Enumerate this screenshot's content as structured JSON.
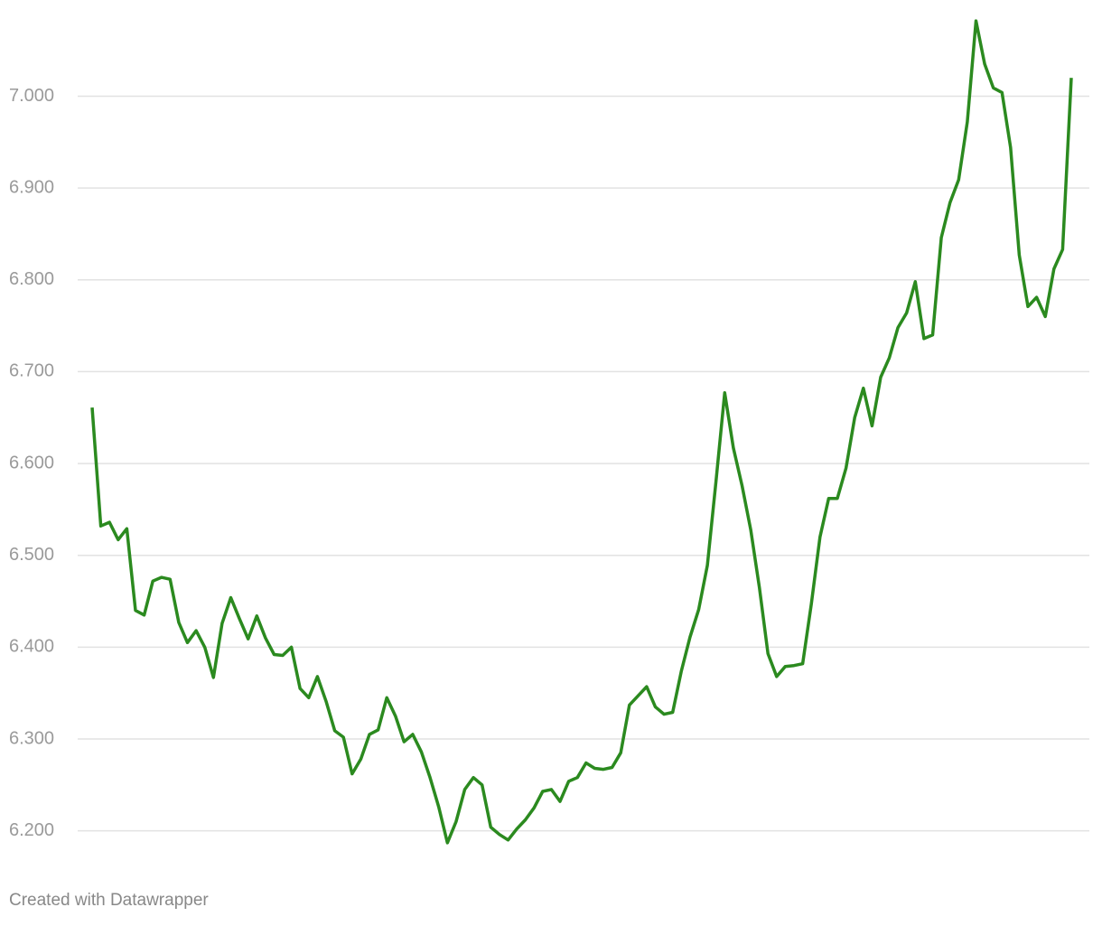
{
  "chart_data": {
    "type": "line",
    "values": [
      6.661,
      6.532,
      6.536,
      6.517,
      6.529,
      6.44,
      6.435,
      6.472,
      6.476,
      6.474,
      6.427,
      6.405,
      6.418,
      6.4,
      6.367,
      6.426,
      6.454,
      6.431,
      6.409,
      6.434,
      6.41,
      6.392,
      6.391,
      6.4,
      6.355,
      6.345,
      6.368,
      6.341,
      6.309,
      6.302,
      6.262,
      6.278,
      6.305,
      6.31,
      6.345,
      6.325,
      6.297,
      6.305,
      6.286,
      6.258,
      6.226,
      6.187,
      6.21,
      6.245,
      6.258,
      6.25,
      6.204,
      6.196,
      6.19,
      6.202,
      6.212,
      6.225,
      6.243,
      6.245,
      6.232,
      6.254,
      6.258,
      6.274,
      6.268,
      6.267,
      6.269,
      6.285,
      6.337,
      6.347,
      6.357,
      6.335,
      6.327,
      6.329,
      6.374,
      6.411,
      6.441,
      6.489,
      6.581,
      6.677,
      6.617,
      6.576,
      6.528,
      6.465,
      6.393,
      6.368,
      6.379,
      6.38,
      6.382,
      6.447,
      6.52,
      6.562,
      6.562,
      6.595,
      6.65,
      6.682,
      6.641,
      6.694,
      6.715,
      6.748,
      6.764,
      6.798,
      6.736,
      6.74,
      6.846,
      6.884,
      6.909,
      6.972,
      7.082,
      7.035,
      7.009,
      7.004,
      6.944,
      6.827,
      6.771,
      6.781,
      6.76,
      6.812,
      6.833,
      7.02
    ],
    "color": "#2b8a1f",
    "ylim": [
      6.18,
      7.09
    ],
    "yticks": [
      {
        "value": 6.2,
        "label": "6.200"
      },
      {
        "value": 6.3,
        "label": "6.300"
      },
      {
        "value": 6.4,
        "label": "6.400"
      },
      {
        "value": 6.5,
        "label": "6.500"
      },
      {
        "value": 6.6,
        "label": "6.600"
      },
      {
        "value": 6.7,
        "label": "6.700"
      },
      {
        "value": 6.8,
        "label": "6.800"
      },
      {
        "value": 6.9,
        "label": "6.900"
      },
      {
        "value": 7.0,
        "label": "7.000"
      }
    ],
    "grid": true,
    "credit": "Created with Datawrapper"
  }
}
